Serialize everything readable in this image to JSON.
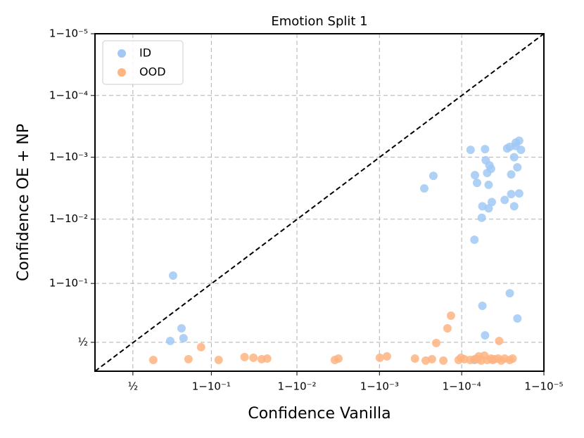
{
  "chart_data": {
    "type": "scatter",
    "title": "Emotion Split 1",
    "xlabel": "Confidence Vanilla",
    "ylabel": "Confidence OE + NP",
    "xscale": "logit",
    "yscale": "logit",
    "grid": true,
    "legend": "upper left",
    "xlim": [
      0.257,
      0.99999
    ],
    "ylim": [
      0.254,
      0.99999
    ],
    "xticks": [
      {
        "value": 0.5,
        "label": "½"
      },
      {
        "value": 0.9,
        "label": "1−10⁻¹"
      },
      {
        "value": 0.99,
        "label": "1−10⁻²"
      },
      {
        "value": 0.999,
        "label": "1−10⁻³"
      },
      {
        "value": 0.9999,
        "label": "1−10⁻⁴"
      },
      {
        "value": 0.99999,
        "label": "1−10⁻⁵"
      }
    ],
    "yticks": [
      {
        "value": 0.5,
        "label": "½"
      },
      {
        "value": 0.9,
        "label": "1−10⁻¹"
      },
      {
        "value": 0.99,
        "label": "1−10⁻²"
      },
      {
        "value": 0.999,
        "label": "1−10⁻³"
      },
      {
        "value": 0.9999,
        "label": "1−10⁻⁴"
      },
      {
        "value": 0.99999,
        "label": "1−10⁻⁵"
      }
    ],
    "series": [
      {
        "name": "ID",
        "color": "#a1c9f4",
        "x": [
          0.755,
          0.74,
          0.796,
          0.805,
          0.999715,
          0.999779,
          0.999922,
          0.999931,
          0.999935,
          0.999948,
          0.999949,
          0.999951,
          0.999953,
          0.999954,
          0.999956,
          0.999972,
          0.999974,
          0.999977,
          0.999978,
          0.999978,
          0.99998,
          0.999981,
          0.999975,
          0.999979,
          0.999975,
          0.99998,
          0.99997,
          0.999957,
          0.999953,
          0.999944,
          0.999943,
          0.99993,
          0.999974,
          0.999944,
          0.999948,
          0.999979,
          0.999977,
          0.99993
        ],
        "y": [
          0.9235,
          0.513,
          0.628,
          0.539,
          0.9968,
          0.998,
          0.99924,
          0.99805,
          0.9974,
          0.99926,
          0.99888,
          0.9982,
          0.9972,
          0.99865,
          0.99846,
          0.99928,
          0.99932,
          0.999,
          0.99934,
          0.99942,
          0.99946,
          0.99924,
          0.9981,
          0.99854,
          0.99605,
          0.99615,
          0.9951,
          0.9947,
          0.9933,
          0.9938,
          0.9905,
          0.9787,
          0.862,
          0.796,
          0.565,
          0.709,
          0.9938,
          0.341
        ]
      },
      {
        "name": "OOD",
        "color": "#ffb482",
        "x": [
          0.639,
          0.826,
          0.871,
          0.917,
          0.958,
          0.967,
          0.9736,
          0.9773,
          0.99652,
          0.99685,
          0.99901,
          0.99919,
          0.99963,
          0.999726,
          0.99977,
          0.999796,
          0.999833,
          0.999851,
          0.999865,
          0.999891,
          0.999907,
          0.999931,
          0.999938,
          0.999942,
          0.999947,
          0.999951,
          0.999956,
          0.99996,
          0.999964,
          0.999965,
          0.999967,
          0.99997,
          0.999974,
          0.999976,
          0.999936,
          0.999921,
          0.999898,
          0.999958
        ],
        "y": [
          0.341,
          0.348,
          0.455,
          0.341,
          0.366,
          0.36,
          0.348,
          0.353,
          0.341,
          0.353,
          0.36,
          0.372,
          0.353,
          0.336,
          0.348,
          0.494,
          0.336,
          0.628,
          0.73,
          0.341,
          0.348,
          0.348,
          0.372,
          0.336,
          0.378,
          0.341,
          0.353,
          0.348,
          0.353,
          0.513,
          0.336,
          0.353,
          0.341,
          0.353,
          0.348,
          0.341,
          0.36,
          0.341
        ]
      }
    ]
  }
}
